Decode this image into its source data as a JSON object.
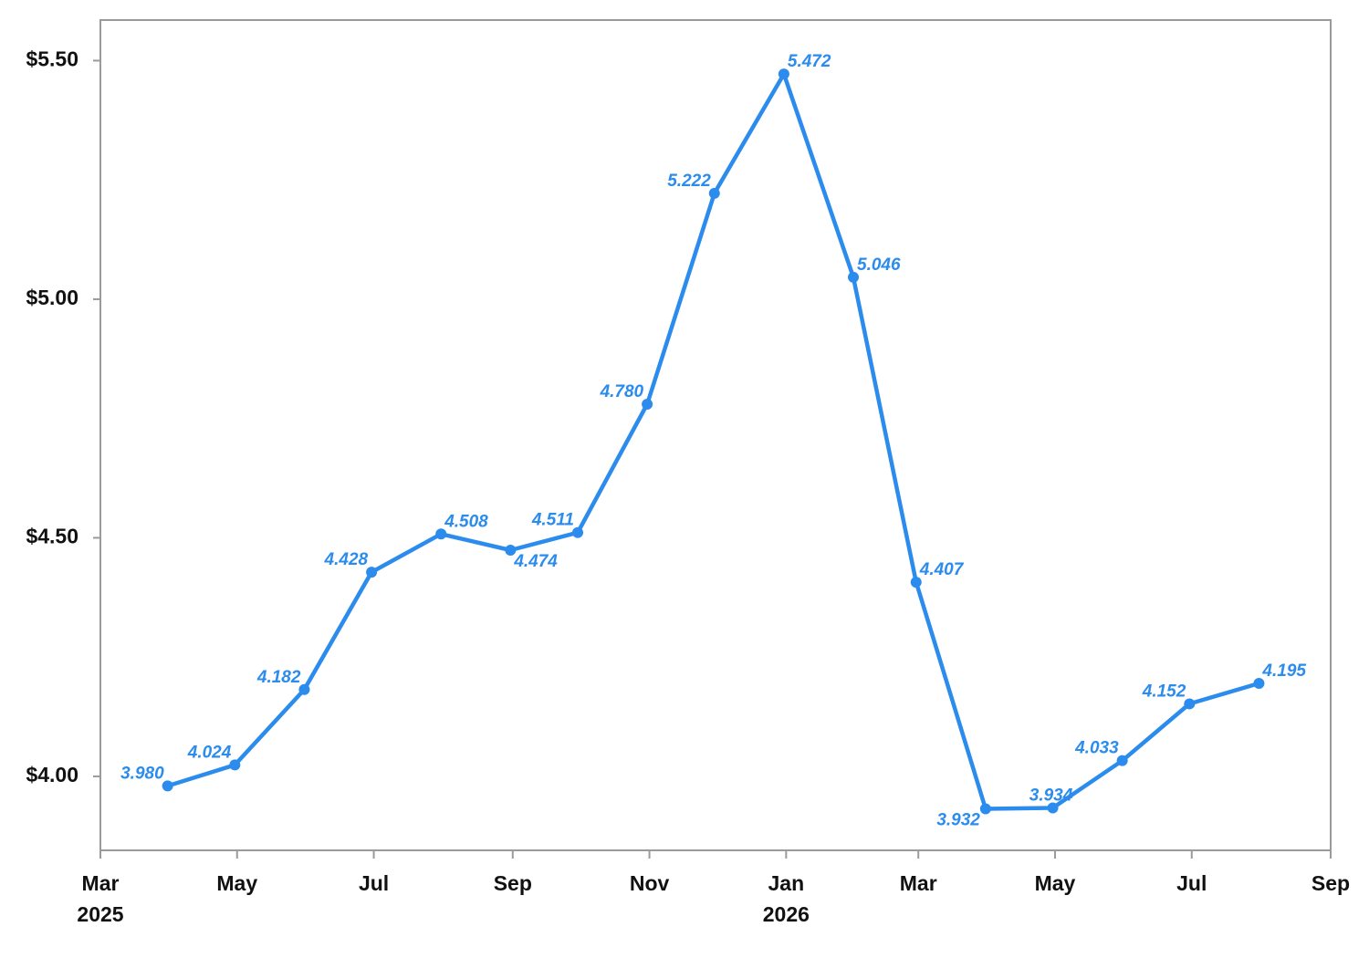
{
  "chart_data": {
    "type": "line",
    "title": "",
    "xlabel": "",
    "ylabel": "",
    "xlim": [
      "2025-03-01",
      "2026-09-01"
    ],
    "ylim": [
      3.845,
      5.585
    ],
    "y_ticks": [
      4.0,
      4.5,
      5.0,
      5.5
    ],
    "y_tick_labels": [
      "$4.00",
      "$4.50",
      "$5.00",
      "$5.50"
    ],
    "x_ticks": [
      {
        "date": "2025-03-01",
        "label": "Mar",
        "year": "2025"
      },
      {
        "date": "2025-05-01",
        "label": "May",
        "year": ""
      },
      {
        "date": "2025-07-01",
        "label": "Jul",
        "year": ""
      },
      {
        "date": "2025-09-01",
        "label": "Sep",
        "year": ""
      },
      {
        "date": "2025-11-01",
        "label": "Nov",
        "year": ""
      },
      {
        "date": "2026-01-01",
        "label": "Jan",
        "year": "2026"
      },
      {
        "date": "2026-03-01",
        "label": "Mar",
        "year": ""
      },
      {
        "date": "2026-05-01",
        "label": "May",
        "year": ""
      },
      {
        "date": "2026-07-01",
        "label": "Jul",
        "year": ""
      },
      {
        "date": "2026-09-01",
        "label": "Sep",
        "year": ""
      }
    ],
    "grid": false,
    "legend": "none",
    "color": "#2b8ced",
    "series": [
      {
        "name": "",
        "points": [
          {
            "x": "2025-03-31",
            "y": 3.98,
            "label": "3.980",
            "pos": "left"
          },
          {
            "x": "2025-04-30",
            "y": 4.024,
            "label": "4.024",
            "pos": "left"
          },
          {
            "x": "2025-05-31",
            "y": 4.182,
            "label": "4.182",
            "pos": "left"
          },
          {
            "x": "2025-06-30",
            "y": 4.428,
            "label": "4.428",
            "pos": "left"
          },
          {
            "x": "2025-07-31",
            "y": 4.508,
            "label": "4.508",
            "pos": "right"
          },
          {
            "x": "2025-08-31",
            "y": 4.474,
            "label": "4.474",
            "pos": "below-right"
          },
          {
            "x": "2025-09-30",
            "y": 4.511,
            "label": "4.511",
            "pos": "left"
          },
          {
            "x": "2025-10-31",
            "y": 4.78,
            "label": "4.780",
            "pos": "left"
          },
          {
            "x": "2025-11-30",
            "y": 5.222,
            "label": "5.222",
            "pos": "left"
          },
          {
            "x": "2025-12-31",
            "y": 5.472,
            "label": "5.472",
            "pos": "right"
          },
          {
            "x": "2026-01-31",
            "y": 5.046,
            "label": "5.046",
            "pos": "right"
          },
          {
            "x": "2026-02-28",
            "y": 4.407,
            "label": "4.407",
            "pos": "right"
          },
          {
            "x": "2026-03-31",
            "y": 3.932,
            "label": "3.932",
            "pos": "below-left"
          },
          {
            "x": "2026-04-30",
            "y": 3.934,
            "label": "3.934",
            "pos": "above"
          },
          {
            "x": "2026-05-31",
            "y": 4.033,
            "label": "4.033",
            "pos": "left"
          },
          {
            "x": "2026-06-30",
            "y": 4.152,
            "label": "4.152",
            "pos": "left"
          },
          {
            "x": "2026-07-31",
            "y": 4.195,
            "label": "4.195",
            "pos": "right"
          }
        ]
      }
    ]
  }
}
